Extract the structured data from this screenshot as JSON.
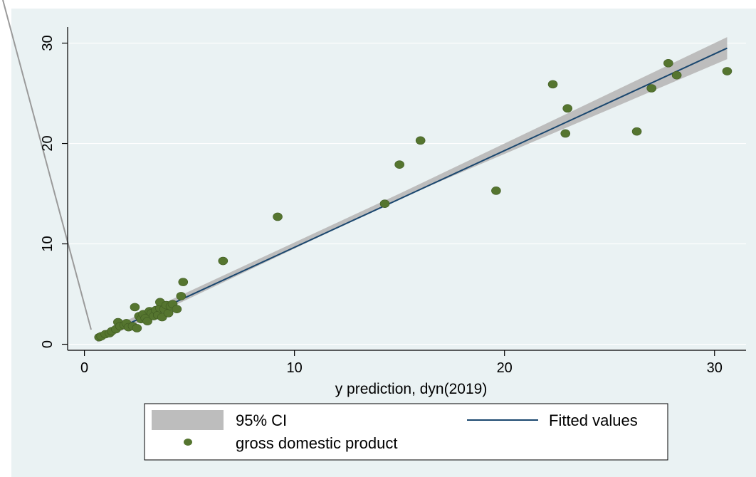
{
  "chart_data": {
    "type": "scatter",
    "title": "",
    "xlabel": "y prediction, dyn(2019)",
    "ylabel": "",
    "xlim": [
      -0.8,
      31.5
    ],
    "ylim": [
      -0.6,
      31.6
    ],
    "xticks": [
      0,
      10,
      20,
      30
    ],
    "yticks": [
      0,
      10,
      20,
      30
    ],
    "grid": "horizontal",
    "legend_position": "bottom",
    "colors": {
      "plot_bg": "#eaf2f3",
      "gridline": "#ffffff",
      "ci_band": "#bdbdbd",
      "fit_line": "#1a476f",
      "points": "#55752f"
    },
    "legend": {
      "ci": "95% CI",
      "fit": "Fitted values",
      "points": "gross domestic product"
    },
    "fitted_line": {
      "x": [
        0.6,
        30.6
      ],
      "y": [
        0.6,
        29.5
      ]
    },
    "ci_band": {
      "x": [
        0.6,
        15.0,
        30.6
      ],
      "lower": [
        0.2,
        14.5,
        28.4
      ],
      "upper": [
        1.0,
        15.0,
        30.6
      ]
    },
    "series": [
      {
        "name": "gross domestic product",
        "points": [
          [
            0.7,
            0.7
          ],
          [
            0.8,
            0.8
          ],
          [
            1.0,
            1.0
          ],
          [
            1.2,
            1.1
          ],
          [
            1.3,
            1.3
          ],
          [
            1.5,
            1.5
          ],
          [
            1.6,
            2.2
          ],
          [
            1.7,
            1.8
          ],
          [
            1.9,
            1.9
          ],
          [
            2.0,
            2.1
          ],
          [
            2.1,
            1.7
          ],
          [
            2.3,
            1.8
          ],
          [
            2.4,
            3.7
          ],
          [
            2.5,
            1.6
          ],
          [
            2.6,
            2.8
          ],
          [
            2.7,
            2.5
          ],
          [
            2.8,
            3.0
          ],
          [
            2.9,
            2.6
          ],
          [
            3.0,
            2.3
          ],
          [
            3.1,
            3.3
          ],
          [
            3.2,
            3.1
          ],
          [
            3.3,
            2.8
          ],
          [
            3.4,
            3.4
          ],
          [
            3.5,
            2.9
          ],
          [
            3.6,
            3.6
          ],
          [
            3.6,
            4.2
          ],
          [
            3.7,
            2.7
          ],
          [
            3.8,
            3.5
          ],
          [
            3.9,
            3.9
          ],
          [
            4.0,
            3.1
          ],
          [
            4.1,
            3.8
          ],
          [
            4.2,
            4.0
          ],
          [
            4.4,
            3.5
          ],
          [
            4.6,
            4.8
          ],
          [
            4.7,
            6.2
          ],
          [
            6.6,
            8.3
          ],
          [
            9.2,
            12.7
          ],
          [
            14.3,
            14.0
          ],
          [
            15.0,
            17.9
          ],
          [
            16.0,
            20.3
          ],
          [
            19.6,
            15.3
          ],
          [
            22.3,
            25.9
          ],
          [
            22.9,
            21.0
          ],
          [
            23.0,
            23.5
          ],
          [
            26.3,
            21.2
          ],
          [
            27.0,
            25.5
          ],
          [
            27.8,
            28.0
          ],
          [
            28.2,
            26.8
          ],
          [
            30.6,
            27.2
          ]
        ]
      }
    ]
  }
}
